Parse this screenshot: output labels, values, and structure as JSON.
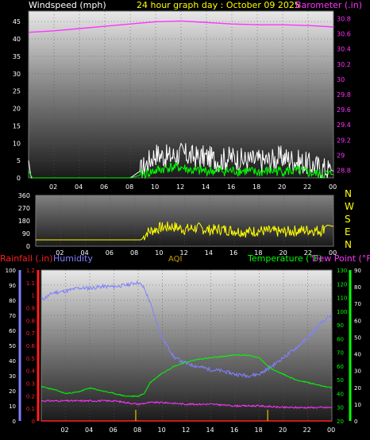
{
  "header": {
    "windspeed_label": "Windspeed (mph)",
    "title": "24 hour graph day : October 09 2025",
    "barometer_label": "Barometer (.in)"
  },
  "colors": {
    "windspeed": "#ffffff",
    "title": "#ffff00",
    "barometer": "#ff33ff",
    "gust": "#ffffff",
    "wind_avg": "#00ff00",
    "direction": "#ffff00",
    "rainfall": "#ff2020",
    "humidity": "#8080ff",
    "aqi": "#c8a000",
    "temperature": "#00ff00",
    "dewpoint": "#ff33ff"
  },
  "mid_header": {
    "rainfall_label": "Rainfall (.in)",
    "humidity_label": "Humidity",
    "aqi_label": "AQI",
    "temperature_label": "Temperature (°F)",
    "dewpoint_label": "Dew Point (°F)"
  },
  "compass": [
    "N",
    "W",
    "S",
    "E",
    "N"
  ],
  "chart_data": [
    {
      "type": "line",
      "name": "wind-and-barometer",
      "x_ticks": [
        "02",
        "04",
        "06",
        "08",
        "10",
        "12",
        "14",
        "16",
        "18",
        "20",
        "22",
        "00"
      ],
      "left_axis": {
        "label": "Windspeed (mph)",
        "ticks": [
          "45",
          "40",
          "35",
          "30",
          "25",
          "20",
          "15",
          "10",
          "5",
          "0"
        ],
        "ylim": [
          0,
          48
        ]
      },
      "right_axis": {
        "label": "Barometer (.in)",
        "ticks": [
          "30.8",
          "30.6",
          "30.4",
          "30.2",
          "30",
          "29.8",
          "29.6",
          "29.4",
          "29.2",
          "29",
          "28.8"
        ],
        "ylim": [
          28.7,
          30.9
        ]
      },
      "series": [
        {
          "name": "Barometer",
          "x": [
            0,
            2,
            4,
            6,
            8,
            10,
            12,
            14,
            16,
            18,
            20,
            22,
            24
          ],
          "values": [
            30.62,
            30.64,
            30.67,
            30.7,
            30.73,
            30.76,
            30.77,
            30.75,
            30.73,
            30.72,
            30.72,
            30.71,
            30.69
          ]
        },
        {
          "name": "Gust",
          "x": [
            0,
            0.2,
            1,
            4,
            8,
            8.8,
            9.5,
            10,
            11,
            12,
            13,
            14,
            15,
            16,
            17,
            18,
            19,
            20,
            21,
            22,
            23,
            24
          ],
          "values": [
            5,
            0,
            0,
            0,
            0,
            2,
            5,
            7,
            6,
            7,
            6,
            6,
            5,
            6,
            5,
            5,
            5,
            6,
            5,
            4,
            3,
            2
          ]
        },
        {
          "name": "Wind Speed",
          "x": [
            0,
            0.3,
            1,
            4,
            8,
            9,
            10,
            11,
            12,
            13,
            14,
            15,
            16,
            17,
            18,
            19,
            20,
            21,
            22,
            23,
            24
          ],
          "values": [
            2,
            0,
            0,
            0,
            0,
            1,
            2,
            3,
            3,
            2,
            2,
            2,
            2,
            2,
            1.5,
            2,
            2,
            2,
            1.5,
            1,
            1
          ]
        }
      ]
    },
    {
      "type": "line",
      "name": "wind-direction",
      "x_ticks": [
        "02",
        "04",
        "06",
        "08",
        "10",
        "12",
        "14",
        "16",
        "18",
        "20",
        "22",
        "00"
      ],
      "left_axis": {
        "ticks": [
          "360",
          "270",
          "180",
          "90",
          "0"
        ],
        "ylim": [
          0,
          360
        ]
      },
      "series": [
        {
          "name": "Wind Direction",
          "x": [
            0,
            1,
            4,
            8,
            8.5,
            9,
            10,
            11,
            12,
            13,
            14,
            15,
            16,
            17,
            18,
            19,
            20,
            21,
            22,
            23,
            23.5,
            24
          ],
          "values": [
            45,
            45,
            45,
            45,
            45,
            100,
            130,
            140,
            120,
            130,
            115,
            120,
            110,
            100,
            110,
            105,
            100,
            110,
            115,
            110,
            150,
            140
          ]
        }
      ]
    },
    {
      "type": "line",
      "name": "temperature-humidity-rain",
      "x_ticks": [
        "02",
        "04",
        "06",
        "08",
        "10",
        "12",
        "14",
        "16",
        "18",
        "20",
        "22",
        "00"
      ],
      "axes": {
        "humidity": {
          "label": "Humidity",
          "ticks": [
            "100",
            "90",
            "80",
            "70",
            "60",
            "50",
            "40",
            "30",
            "20",
            "10",
            "0"
          ],
          "ylim": [
            0,
            100
          ]
        },
        "rainfall": {
          "label": "Rainfall (.in)",
          "ticks": [
            "1.2",
            "1.1",
            "1",
            "0.9",
            "0.8",
            "0.7",
            "0.6",
            "0.5",
            "0.4",
            "0.3",
            "0.2",
            "0.1",
            "0"
          ],
          "ylim": [
            0,
            1.2
          ]
        },
        "temperature": {
          "label": "Temperature (°F)",
          "ticks": [
            "130",
            "120",
            "110",
            "100",
            "90",
            "80",
            "70",
            "60",
            "50",
            "40",
            "30",
            "20"
          ],
          "ylim": [
            20,
            130
          ]
        },
        "dewpoint": {
          "label": "Dew Point (°F)",
          "ticks": [
            "90",
            "80",
            "70",
            "60",
            "50",
            "40",
            "30",
            "20",
            "10",
            "0"
          ],
          "ylim": [
            0,
            90
          ]
        }
      },
      "series": [
        {
          "name": "Humidity",
          "axis": "humidity",
          "x": [
            0,
            1,
            2,
            3,
            4,
            5,
            6,
            7,
            8,
            8.5,
            9,
            10,
            11,
            12,
            13,
            14,
            15,
            16,
            17,
            18,
            19,
            20,
            21,
            22,
            23,
            24
          ],
          "values": [
            80,
            85,
            86,
            88,
            88,
            89,
            89,
            90,
            92,
            88,
            78,
            55,
            42,
            38,
            36,
            34,
            33,
            31,
            30,
            31,
            36,
            42,
            48,
            55,
            64,
            70
          ]
        },
        {
          "name": "Temperature",
          "axis": "temperature",
          "x": [
            0,
            1,
            2,
            3,
            4,
            5,
            6,
            7,
            8,
            8.5,
            9,
            10,
            11,
            12,
            13,
            14,
            15,
            16,
            17,
            18,
            19,
            20,
            21,
            22,
            23,
            24
          ],
          "values": [
            45,
            43,
            40,
            41,
            44,
            42,
            40,
            38,
            38,
            40,
            48,
            55,
            60,
            63,
            65,
            66,
            67,
            68,
            68,
            66,
            58,
            54,
            50,
            48,
            46,
            44
          ]
        },
        {
          "name": "Dew Point",
          "axis": "dewpoint",
          "x": [
            0,
            2,
            4,
            6,
            8,
            9,
            10,
            12,
            14,
            16,
            18,
            20,
            22,
            24
          ],
          "values": [
            12,
            12,
            12,
            12,
            10,
            11,
            11,
            10,
            10,
            9,
            9,
            8,
            8,
            8
          ]
        },
        {
          "name": "Rainfall",
          "axis": "rainfall",
          "x": [
            0,
            24
          ],
          "values": [
            0,
            0
          ]
        }
      ],
      "markers": [
        {
          "x": 7.8,
          "color": "#c8a000"
        },
        {
          "x": 18.7,
          "color": "#c8a000"
        }
      ]
    }
  ]
}
